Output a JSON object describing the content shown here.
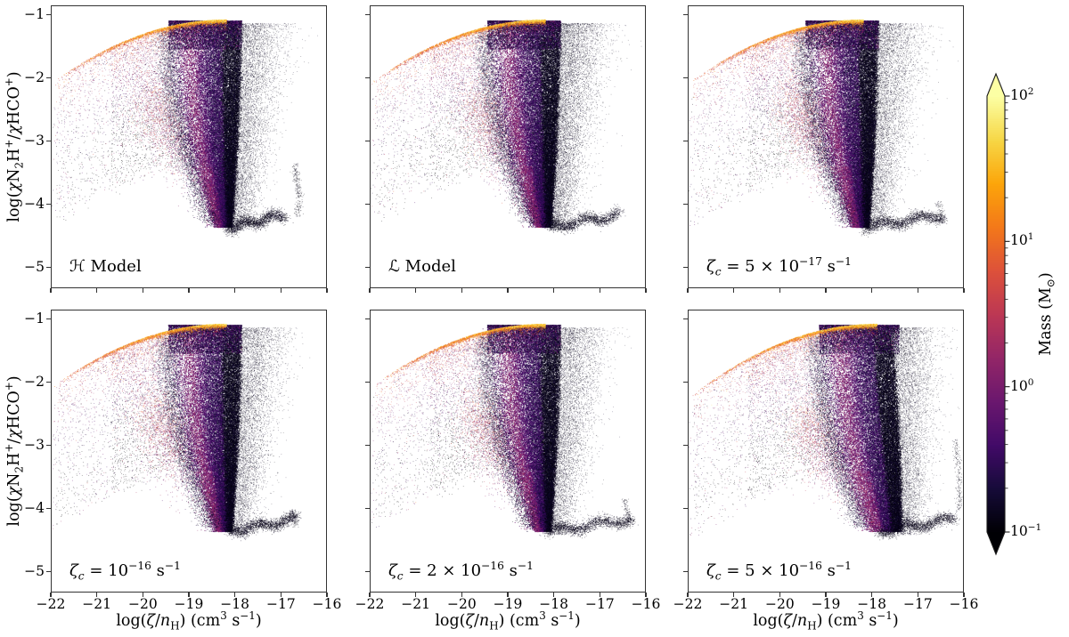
{
  "figure": {
    "background": "#ffffff",
    "frame_color": "#333333",
    "description": "Six-panel density scatter figure: log(N2H+/HCO+ abundance ratio) vs log(zeta/nH), points colored by cell mass with an inferno colormap; panels compare H and L simulation models and four cosmic-ray ionisation rates."
  },
  "chart_data": {
    "type": "scatter",
    "colormap": "inferno",
    "colormap_stops": [
      [
        0,
        "#000004"
      ],
      [
        0.1,
        "#160b39"
      ],
      [
        0.2,
        "#420a68"
      ],
      [
        0.3,
        "#6a176e"
      ],
      [
        0.4,
        "#932667"
      ],
      [
        0.5,
        "#bc3754"
      ],
      [
        0.6,
        "#dd513a"
      ],
      [
        0.7,
        "#f37819"
      ],
      [
        0.8,
        "#fca50a"
      ],
      [
        0.9,
        "#f6d746"
      ],
      [
        1,
        "#fcffa4"
      ]
    ],
    "xlabel_html": "log(<i>ζ</i>/<i>n</i><sub>H</sub>) (cm<sup>3</sup> s<sup>−1</sup>)",
    "ylabel_html": "log(<i>χ</i>N<sub>2</sub>H<sup>+</sup>/<i>χ</i>HCO<sup>+</sup>)",
    "x_axis": {
      "min": -22,
      "max": -16,
      "ticks": [
        {
          "v": -22,
          "label": "−22"
        },
        {
          "v": -21,
          "label": "−21"
        },
        {
          "v": -20,
          "label": "−20"
        },
        {
          "v": -19,
          "label": "−19"
        },
        {
          "v": -18,
          "label": "−18"
        },
        {
          "v": -17,
          "label": "−17"
        },
        {
          "v": -16,
          "label": "−16"
        }
      ]
    },
    "y_axis": {
      "min": -5.33,
      "max": -0.85,
      "ticks": [
        {
          "v": -1,
          "label": "−1"
        },
        {
          "v": -2,
          "label": "−2"
        },
        {
          "v": -3,
          "label": "−3"
        },
        {
          "v": -4,
          "label": "−4"
        },
        {
          "v": -5,
          "label": "−5"
        }
      ]
    },
    "panels": [
      {
        "id": "h-model",
        "annotation_html": "ℋ Model",
        "seed": 11,
        "warm": 0.85,
        "wx": -19.9,
        "wy": -2.25,
        "tail": -16.9,
        "hook": {
          "x": -16.63,
          "y0": -4.2,
          "y1": -3.35,
          "n": 260
        }
      },
      {
        "id": "l-model",
        "annotation_html": "ℒ Model",
        "seed": 22,
        "warm": 1.05,
        "wx": -19.75,
        "wy": -2.3,
        "tail": -16.55,
        "halo": 1.25
      },
      {
        "id": "zeta-5e-17",
        "annotation_html": "<i>ζ<sub>c</sub></i> = 5 × 10<sup>−17</sup> s<sup>−1</sup>",
        "seed": 33,
        "warm": 1.3,
        "wx": -19.7,
        "wy": -2.3,
        "tail": -16.45,
        "hook": {
          "x": -16.5,
          "y0": -4.3,
          "y1": -3.95,
          "n": 110
        }
      },
      {
        "id": "zeta-1e-16",
        "annotation_html": "<i>ζ<sub>c</sub></i> = 10<sup>−16</sup> s<sup>−1</sup>",
        "seed": 44,
        "warm": 1.0,
        "wx": -19.85,
        "wy": -2.35,
        "tail": -16.65,
        "hook": {
          "x": -16.72,
          "y0": -4.3,
          "y1": -4.02,
          "n": 90
        }
      },
      {
        "id": "zeta-2e-16",
        "annotation_html": "<i>ζ<sub>c</sub></i> = 2 × 10<sup>−16</sup> s<sup>−1</sup>",
        "seed": 55,
        "warm": 1.15,
        "wx": -19.7,
        "wy": -2.4,
        "tail": -16.3,
        "hook": {
          "x": -16.4,
          "y0": -4.3,
          "y1": -3.85,
          "n": 130
        }
      },
      {
        "id": "zeta-5e-16",
        "annotation_html": "<i>ζ<sub>c</sub></i> = 5 × 10<sup>−16</sup> s<sup>−1</sup>",
        "seed": 66,
        "warm": 0.95,
        "wx": -19.5,
        "wy": -2.45,
        "tail": -16.2,
        "hook": {
          "x": -16.12,
          "y0": -4.05,
          "y1": -2.9,
          "n": 230
        },
        "xshift": 0.3,
        "slant": 0.13
      }
    ],
    "distribution_features": [
      "thin bright orange-yellow ridge arc from (-22,-2.0) rising to apex near (-18.2,-1.06)",
      "diffuse fan of pink/purple points below the ridge",
      "warm salmon diagonal streak near (-19.8,-2.3) descending to (-18.7,-3.3)",
      "large dark-purple/black teardrop blob narrowing from y=-1.1 to a tip near (-18.3,-4.4)",
      "nearly black dense vertical band on the blob's right side around x=-18",
      "sparse black halo scattered rightward to about x=-16.8",
      "black bottom tail along y=-4.3 extending right, with a small rising hook at far right"
    ],
    "colorbar": {
      "label_html": "Mass (M<sub>⊙</sub>)",
      "min": 0.1,
      "max": 100,
      "scale": "log",
      "extend": "both",
      "ticks": [
        {
          "log": 2,
          "html": "10<sup>2</sup>"
        },
        {
          "log": 1,
          "html": "10<sup>1</sup>"
        },
        {
          "log": 0,
          "html": "10<sup>0</sup>"
        },
        {
          "log": -1,
          "html": "10<sup>−1</sup>"
        }
      ]
    },
    "render_params": {
      "ridge_n": 3400,
      "fan_n": 5200,
      "warm_n": 2600,
      "blob_n": 34000,
      "edge_n": 3000,
      "cap_n": 4600,
      "halo_n": 5600,
      "tail_n": 1900,
      "strag_n": 800
    }
  }
}
